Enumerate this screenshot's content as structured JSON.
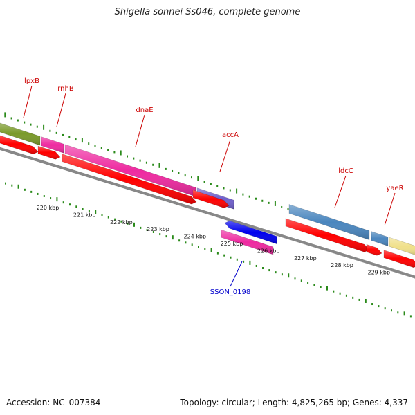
{
  "title": "Shigella sonnei Ss046, complete genome",
  "footer": {
    "accession": "Accession: NC_007384",
    "summary": "Topology: circular; Length: 4,825,265 bp; Genes: 4,337"
  },
  "colors": {
    "tick_green": "#2a8a1a",
    "backbone": "#888888",
    "cds_red": "#ff0000",
    "label_red": "#cc0000",
    "label_blue": "#0000cc"
  },
  "scale_labels": [
    "220 kbp",
    "221 kbp",
    "222 kbp",
    "223 kbp",
    "224 kbp",
    "225 kbp",
    "226 kbp",
    "227 kbp",
    "228 kbp",
    "229 kbp"
  ],
  "genes": [
    {
      "name": "lpxB",
      "color": "#7a9a2a",
      "strand": "forward"
    },
    {
      "name": "rnhB",
      "color": "#ee2aa0",
      "strand": "forward"
    },
    {
      "name": "dnaE",
      "color": "#ee2aa0",
      "strand": "forward"
    },
    {
      "name": "accA",
      "color": "#7060cc",
      "strand": "forward"
    },
    {
      "name": "ldcC",
      "color": "#4a86be",
      "strand": "forward"
    },
    {
      "name": "yaeR",
      "color": "#4a86be",
      "strand": "forward"
    },
    {
      "name": "",
      "color": "#f0e08a",
      "strand": "forward"
    },
    {
      "name": "SSON_0198",
      "color": "#0000ee",
      "strand": "reverse"
    }
  ],
  "gene_labels": [
    "lpxB",
    "rnhB",
    "dnaE",
    "accA",
    "ldcC",
    "yaeR",
    "SSON_0198"
  ]
}
